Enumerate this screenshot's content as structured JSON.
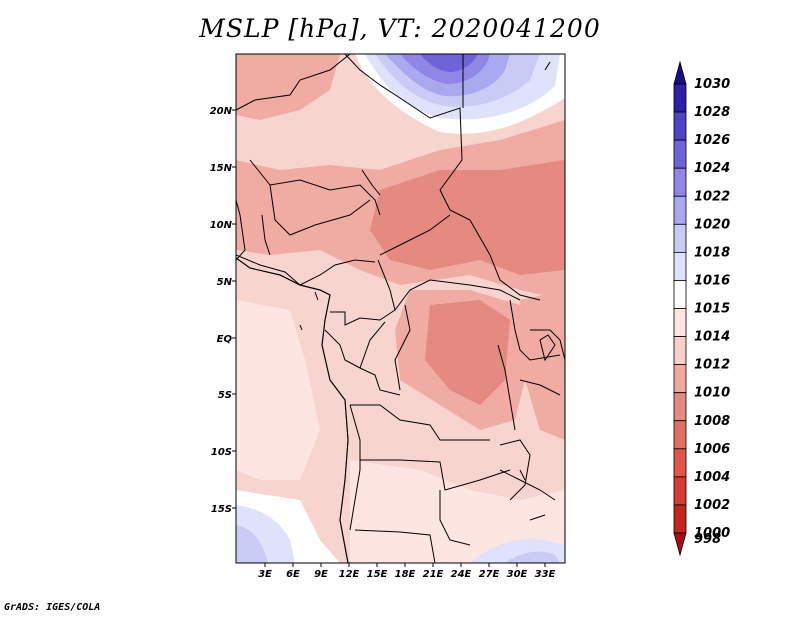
{
  "title": "MSLP [hPa], VT: 2020041200",
  "footer": "GrADS: IGES/COLA",
  "map": {
    "lat_labels": [
      "20N",
      "15N",
      "10N",
      "5N",
      "EQ",
      "5S",
      "10S",
      "15S"
    ],
    "lon_labels": [
      "3E",
      "6E",
      "9E",
      "12E",
      "15E",
      "18E",
      "21E",
      "24E",
      "27E",
      "30E",
      "33E"
    ]
  },
  "colorbar": {
    "levels": [
      "998",
      "1000",
      "1002",
      "1004",
      "1006",
      "1008",
      "1010",
      "1012",
      "1014",
      "1015",
      "1016",
      "1018",
      "1020",
      "1022",
      "1024",
      "1026",
      "1028",
      "1030"
    ],
    "colors": [
      "#a50f15",
      "#c8241e",
      "#d63a31",
      "#e0574a",
      "#e26f64",
      "#e48a80",
      "#f0a9a0",
      "#f8cfca",
      "#fde5e2",
      "#ffffff",
      "#e0e2fb",
      "#c9cbf5",
      "#a9a9ef",
      "#8f86e6",
      "#6e63d8",
      "#4e44c7",
      "#2c1fa8",
      "#1a0e8c"
    ]
  }
}
